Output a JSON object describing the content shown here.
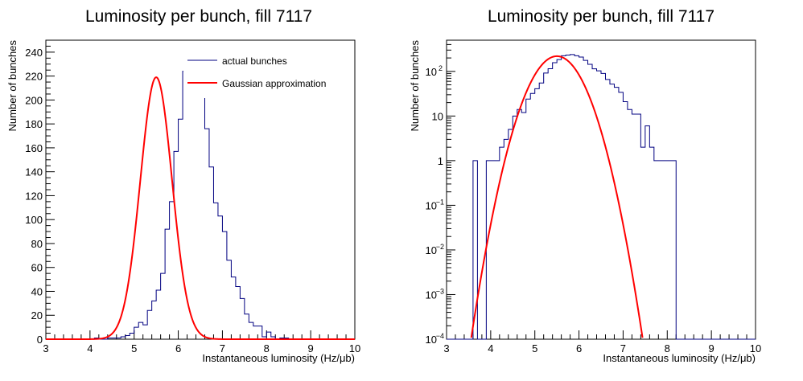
{
  "chart_data": [
    {
      "type": "histogram",
      "title": "Luminosity per bunch, fill 7117",
      "xlabel": "Instantaneous luminosity (Hz/μb)",
      "ylabel": "Number of bunches",
      "xlim": [
        3,
        10
      ],
      "ylim": [
        0,
        250
      ],
      "yscale": "linear",
      "x_ticks": [
        "3",
        "4",
        "5",
        "6",
        "7",
        "8",
        "9",
        "10"
      ],
      "y_ticks": [
        "0",
        "20",
        "40",
        "60",
        "80",
        "100",
        "120",
        "140",
        "160",
        "180",
        "200",
        "220",
        "240"
      ],
      "bin_width": 0.1,
      "bin_start": 3.0,
      "series": [
        {
          "name": "actual bunches",
          "kind": "step",
          "color": "#000080",
          "values": [
            0,
            0,
            0,
            0,
            0,
            0,
            0,
            0,
            0,
            0,
            0,
            1,
            0,
            0,
            1,
            1,
            1,
            2,
            3,
            5,
            10,
            14,
            12,
            24,
            32,
            41,
            55,
            92,
            115,
            157,
            184,
            224,
            232,
            238,
            224,
            209,
            176,
            144,
            114,
            103,
            90,
            66,
            52,
            44,
            34,
            21,
            14,
            11,
            11,
            2,
            6,
            2,
            0,
            1,
            1,
            0,
            0,
            0,
            0,
            0,
            0,
            0,
            0,
            0,
            0,
            0,
            0,
            0,
            0,
            0
          ]
        },
        {
          "name": "Gaussian approximation",
          "kind": "gaussian",
          "color": "#ff0000",
          "amplitude": 219,
          "mean": 5.5,
          "sigma": 0.36
        }
      ],
      "legend": "top-right"
    },
    {
      "type": "histogram",
      "title": "Luminosity per bunch, fill 7117",
      "xlabel": "Instantaneous luminosity (Hz/μb)",
      "ylabel": "Number of bunches",
      "xlim": [
        3,
        10
      ],
      "ylim": [
        0.0001,
        500
      ],
      "yscale": "log",
      "x_ticks": [
        "3",
        "4",
        "5",
        "6",
        "7",
        "8",
        "9",
        "10"
      ],
      "y_ticks": [
        {
          "base": "10",
          "exp": "−4",
          "value": 0.0001
        },
        {
          "base": "10",
          "exp": "−3",
          "value": 0.001
        },
        {
          "base": "10",
          "exp": "−2",
          "value": 0.01
        },
        {
          "base": "10",
          "exp": "−1",
          "value": 0.1
        },
        {
          "base": "1",
          "exp": "",
          "value": 1
        },
        {
          "base": "10",
          "exp": "",
          "value": 10
        },
        {
          "base": "10",
          "exp": "2",
          "value": 100
        }
      ],
      "bin_width": 0.1,
      "bin_start": 3.0,
      "series": [
        {
          "name": "actual bunches",
          "kind": "step",
          "color": "#000080",
          "values": [
            0,
            0,
            0,
            0,
            0,
            0,
            1,
            0,
            0,
            1,
            1,
            1,
            2,
            3,
            5,
            10,
            14,
            12,
            24,
            32,
            41,
            55,
            92,
            115,
            157,
            184,
            224,
            232,
            238,
            224,
            209,
            176,
            144,
            114,
            103,
            90,
            66,
            52,
            44,
            34,
            21,
            14,
            11,
            11,
            2,
            6,
            2,
            1,
            1,
            1,
            1,
            1,
            0,
            0,
            0,
            0,
            0,
            0,
            0,
            0,
            0,
            0,
            0,
            0,
            0,
            0,
            0,
            0,
            0,
            0
          ]
        },
        {
          "name": "Gaussian approximation",
          "kind": "gaussian",
          "color": "#ff0000",
          "amplitude": 219,
          "mean": 5.5,
          "sigma": 0.36
        }
      ]
    }
  ]
}
